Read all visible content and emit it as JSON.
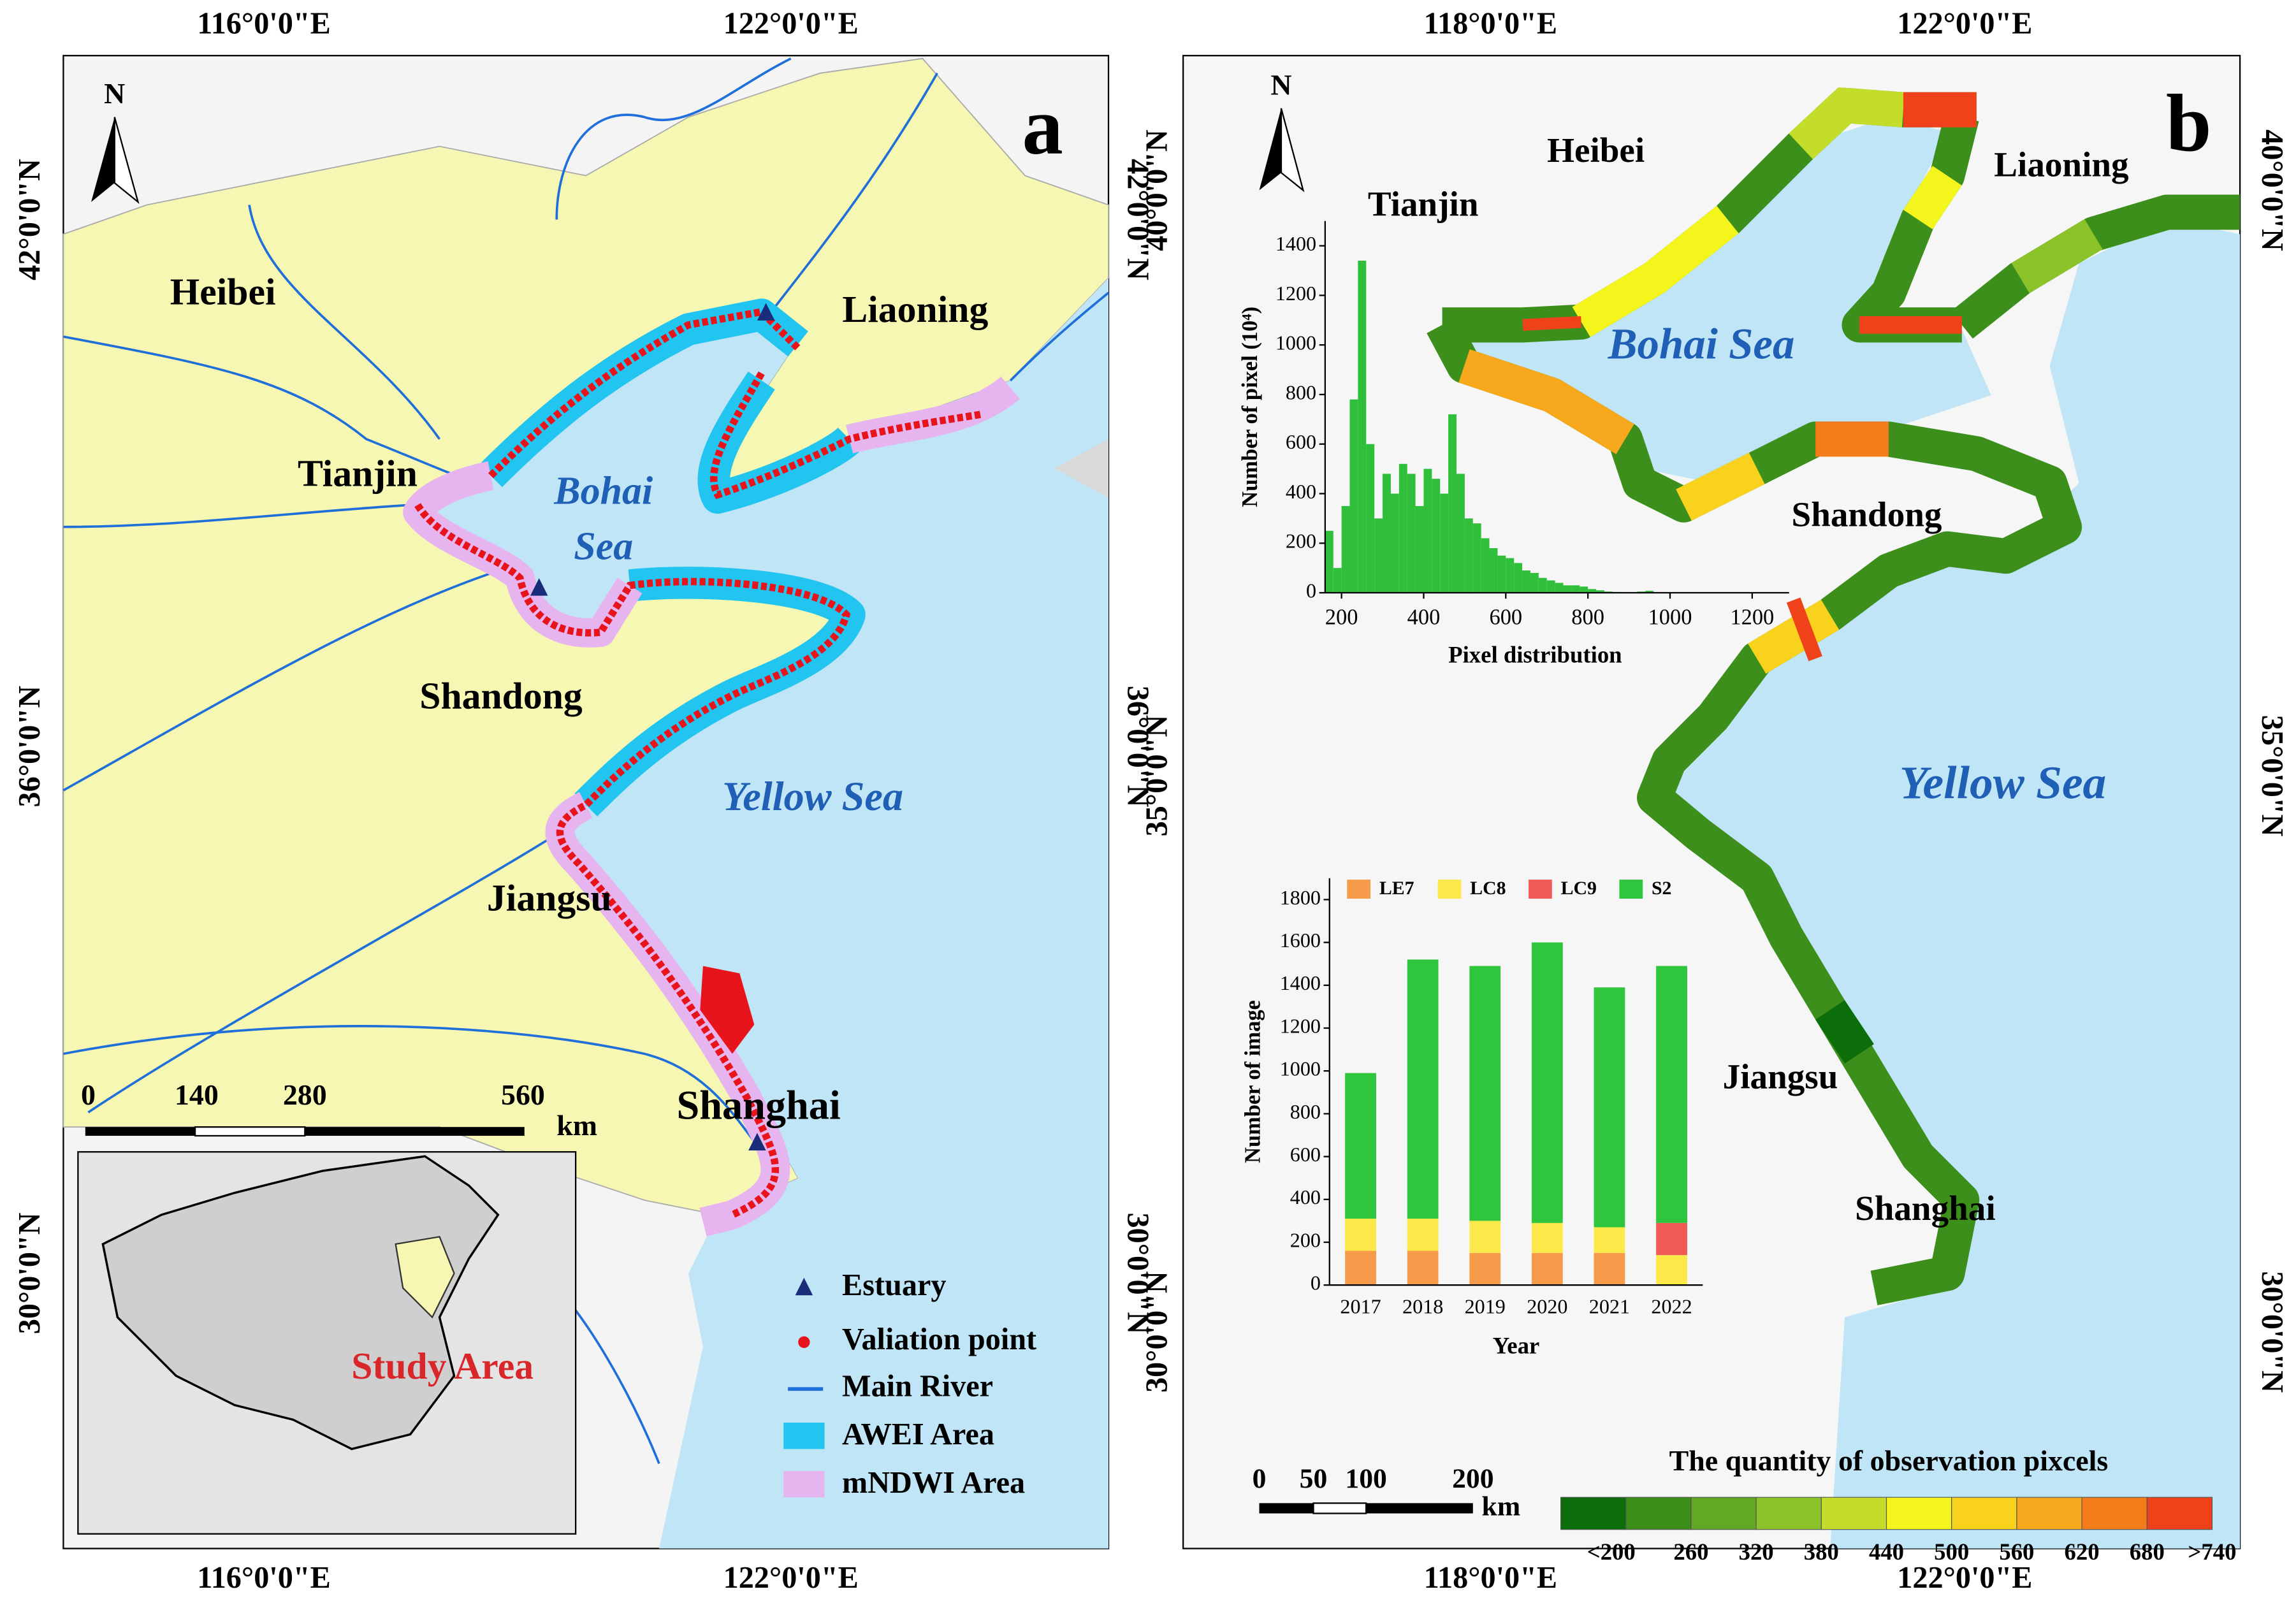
{
  "map_a": {
    "panel": "a",
    "lon_ticks": [
      "116°0'0\"E",
      "122°0'0\"E"
    ],
    "lat_ticks": [
      "42°0'0\"N",
      "36°0'0\"N",
      "30°0'0\"N"
    ],
    "labels": {
      "heibei": "Heibei",
      "liaoning": "Liaoning",
      "tianjin": "Tianjin",
      "bohai": "Bohai",
      "sea": "Sea",
      "shandong": "Shandong",
      "yellow_sea": "Yellow Sea",
      "jiangsu": "Jiangsu",
      "shanghai": "Shanghai"
    },
    "scale": {
      "ticks": [
        0,
        140,
        280,
        560
      ],
      "unit": "km"
    },
    "inset_label": "Study Area",
    "legend": [
      "Estuary",
      "Valiation point",
      "Main River",
      "AWEI Area",
      "mNDWI Area"
    ]
  },
  "map_b": {
    "panel": "b",
    "lon_ticks": [
      "118°0'0\"E",
      "122°0'0\"E"
    ],
    "lat_ticks": [
      "40°0'0\"N",
      "35°0'0\"N",
      "30°0'0\"N"
    ],
    "labels": {
      "heibei": "Heibei",
      "liaoning": "Liaoning",
      "tianjin": "Tianjin",
      "bohai": "Bohai Sea",
      "shandong": "Shandong",
      "yellow_sea": "Yellow Sea",
      "jiangsu": "Jiangsu",
      "shanghai": "Shanghai"
    },
    "scale": {
      "ticks": [
        0,
        50,
        100,
        200
      ],
      "unit": "km"
    },
    "colorbar": {
      "title": "The quantity of observation pixcels",
      "colors": [
        "#0b6e0b",
        "#3d8f1c",
        "#62a824",
        "#8cc22a",
        "#c4dc2a",
        "#f5f51e",
        "#f9d21e",
        "#f7a81c",
        "#f57c1a",
        "#f0421a"
      ],
      "labels": [
        "<200",
        260,
        320,
        380,
        440,
        500,
        560,
        620,
        680,
        ">740"
      ]
    }
  },
  "chart_data": [
    {
      "type": "histogram",
      "x_label": "Pixel distribution",
      "y_label": "Number of pixel (10⁴)",
      "color": "#2fbf3a",
      "bins": [
        160,
        180,
        200,
        220,
        240,
        260,
        280,
        300,
        320,
        340,
        360,
        380,
        400,
        420,
        440,
        460,
        480,
        500,
        520,
        540,
        560,
        580,
        600,
        620,
        640,
        660,
        680,
        700,
        720,
        740,
        760,
        780,
        800,
        820,
        840,
        860,
        880,
        900,
        920,
        940,
        960
      ],
      "counts": [
        250,
        100,
        350,
        780,
        1340,
        600,
        300,
        480,
        400,
        520,
        480,
        350,
        500,
        460,
        400,
        720,
        480,
        300,
        280,
        220,
        180,
        150,
        140,
        120,
        90,
        80,
        60,
        50,
        40,
        30,
        30,
        25,
        15,
        10,
        5,
        3,
        2,
        1,
        5,
        8
      ],
      "xlim": [
        160,
        1290
      ],
      "ylim": [
        0,
        1500
      ],
      "xticks": [
        200,
        400,
        600,
        800,
        1000,
        1200
      ],
      "yticks": [
        0,
        200,
        400,
        600,
        800,
        1000,
        1200,
        1400
      ]
    },
    {
      "type": "bar",
      "stacked": true,
      "x_label": "Year",
      "y_label": "Number of image",
      "categories": [
        "2017",
        "2018",
        "2019",
        "2020",
        "2021",
        "2022"
      ],
      "series": [
        {
          "name": "LE7",
          "color": "#f79a4a",
          "values": [
            160,
            160,
            150,
            150,
            150,
            0
          ]
        },
        {
          "name": "LC8",
          "color": "#fde84a",
          "values": [
            150,
            150,
            150,
            140,
            120,
            140
          ]
        },
        {
          "name": "LC9",
          "color": "#f25a55",
          "values": [
            0,
            0,
            0,
            0,
            0,
            150
          ]
        },
        {
          "name": "S2",
          "color": "#2fc53d",
          "values": [
            680,
            1210,
            1190,
            1310,
            1120,
            1200
          ]
        }
      ],
      "ylim": [
        0,
        1900
      ],
      "yticks": [
        0,
        200,
        400,
        600,
        800,
        1000,
        1200,
        1400,
        1600,
        1800
      ]
    }
  ]
}
